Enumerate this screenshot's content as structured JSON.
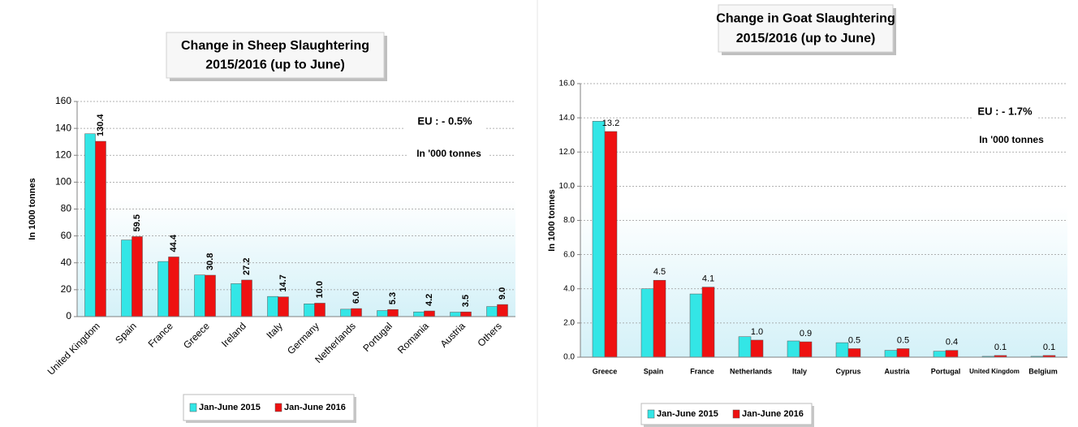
{
  "chart_data": [
    {
      "type": "bar",
      "title": "Change in Sheep Slaughtering",
      "subtitle": "2015/2016  (up to June)",
      "y_label": "In 1000 tonnes",
      "annotations": [
        "EU : - 0.5%",
        "In '000 tonnes"
      ],
      "categories": [
        "United Kingdom",
        "Spain",
        "France",
        "Greece",
        "Ireland",
        "Italy",
        "Germany",
        "Netherlands",
        "Portugal",
        "Romania",
        "Austria",
        "Others"
      ],
      "series": [
        {
          "name": "Jan-June 2015",
          "color": "#33e6e6",
          "values": [
            136,
            57,
            41,
            31,
            24.5,
            15,
            9.5,
            5.5,
            4.5,
            3.5,
            3.3,
            7.5
          ]
        },
        {
          "name": "Jan-June 2016",
          "color": "#ee1111",
          "values": [
            130.4,
            59.5,
            44.4,
            30.8,
            27.2,
            14.7,
            10,
            6,
            5.3,
            4.2,
            3.5,
            9
          ],
          "value_labels": [
            "130.4",
            "59.5",
            "44.4",
            "30.8",
            "27.2",
            "14.7",
            "10.0",
            "6.0",
            "5.3",
            "4.2",
            "3.5",
            "9.0"
          ]
        }
      ],
      "ylim": [
        0,
        160
      ],
      "yticks": [
        0,
        20,
        40,
        60,
        80,
        100,
        120,
        140,
        160
      ],
      "grid": true,
      "legend": "bottom"
    },
    {
      "type": "bar",
      "title": "Change in Goat Slaughtering",
      "subtitle": "2015/2016  (up to June)",
      "y_label": "In 1000 tonnes",
      "annotations": [
        "EU : - 1.7%",
        "In '000 tonnes"
      ],
      "categories": [
        "Greece",
        "Spain",
        "France",
        "Netherlands",
        "Italy",
        "Cyprus",
        "Austria",
        "Portugal",
        "United Kingdom",
        "Belgium"
      ],
      "series": [
        {
          "name": "Jan-June 2015",
          "color": "#33e6e6",
          "values": [
            13.8,
            4.0,
            3.7,
            1.2,
            0.95,
            0.85,
            0.4,
            0.35,
            0.05,
            0.05
          ]
        },
        {
          "name": "Jan-June 2016",
          "color": "#ee1111",
          "values": [
            13.2,
            4.5,
            4.1,
            1,
            0.9,
            0.5,
            0.5,
            0.4,
            0.1,
            0.1
          ],
          "value_labels": [
            "13.2",
            "4.5",
            "4.1",
            "1.0",
            "0.9",
            "0.5",
            "0.5",
            "0.4",
            "0.1",
            "0.1"
          ]
        }
      ],
      "ylim": [
        0,
        16
      ],
      "yticks": [
        {
          "value": 0,
          "label": "0.0"
        },
        {
          "value": 2,
          "label": "2.0"
        },
        {
          "value": 4,
          "label": "4.0"
        },
        {
          "value": 6,
          "label": "6.0"
        },
        {
          "value": 8,
          "label": "8.0"
        },
        {
          "value": 10,
          "label": "10.0"
        },
        {
          "value": 12,
          "label": "12.0"
        },
        {
          "value": 14,
          "label": "14.0"
        },
        {
          "value": 16,
          "label": "16.0"
        }
      ],
      "grid": true,
      "legend": "bottom"
    }
  ]
}
